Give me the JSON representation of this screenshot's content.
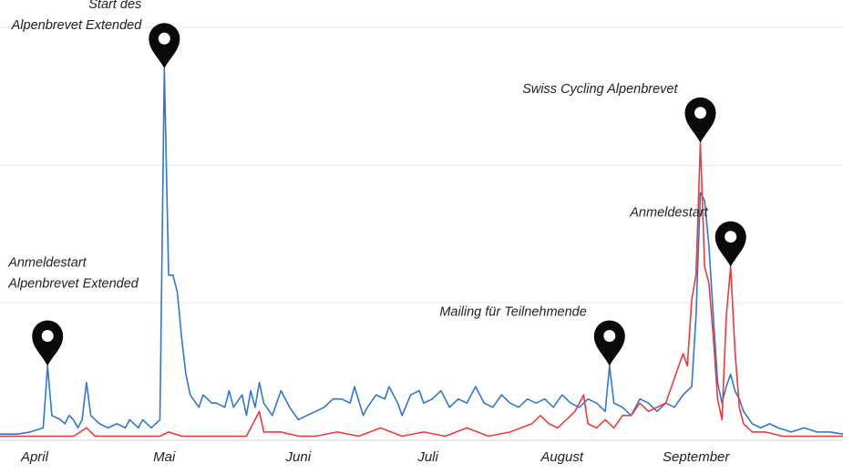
{
  "chart_data": {
    "type": "line",
    "title": "",
    "xlabel": "",
    "ylabel": "",
    "x_start": "2023-03-24",
    "x_end": "2023-10-05",
    "xlim": [
      "2023-03-24",
      "2023-10-05"
    ],
    "ylim": [
      0,
      100
    ],
    "grid": true,
    "legend": "none",
    "x_ticks": [
      {
        "label": "April",
        "date": "2023-04-01"
      },
      {
        "label": "Mai",
        "date": "2023-05-01"
      },
      {
        "label": "Juni",
        "date": "2023-06-01"
      },
      {
        "label": "Juli",
        "date": "2023-07-01"
      },
      {
        "label": "August",
        "date": "2023-08-01"
      },
      {
        "label": "September",
        "date": "2023-09-01"
      }
    ],
    "series": [
      {
        "color": "#2f77d4",
        "points": [
          [
            "2023-03-24",
            1.5
          ],
          [
            "2023-03-28",
            1.5
          ],
          [
            "2023-03-31",
            2
          ],
          [
            "2023-04-03",
            3
          ],
          [
            "2023-04-04",
            18
          ],
          [
            "2023-04-05",
            6
          ],
          [
            "2023-04-07",
            5
          ],
          [
            "2023-04-08",
            4
          ],
          [
            "2023-04-09",
            6
          ],
          [
            "2023-04-10",
            5
          ],
          [
            "2023-04-11",
            3
          ],
          [
            "2023-04-12",
            5
          ],
          [
            "2023-04-13",
            14
          ],
          [
            "2023-04-14",
            6
          ],
          [
            "2023-04-16",
            4
          ],
          [
            "2023-04-18",
            3
          ],
          [
            "2023-04-20",
            4
          ],
          [
            "2023-04-22",
            3
          ],
          [
            "2023-04-23",
            5
          ],
          [
            "2023-04-25",
            3
          ],
          [
            "2023-04-26",
            5
          ],
          [
            "2023-04-28",
            3
          ],
          [
            "2023-04-29",
            4
          ],
          [
            "2023-04-30",
            5
          ],
          [
            "2023-05-01",
            90
          ],
          [
            "2023-05-02",
            40
          ],
          [
            "2023-05-03",
            40
          ],
          [
            "2023-05-04",
            36
          ],
          [
            "2023-05-05",
            25
          ],
          [
            "2023-05-06",
            16
          ],
          [
            "2023-05-07",
            11
          ],
          [
            "2023-05-09",
            8
          ],
          [
            "2023-05-10",
            11
          ],
          [
            "2023-05-12",
            9
          ],
          [
            "2023-05-13",
            9
          ],
          [
            "2023-05-15",
            8
          ],
          [
            "2023-05-16",
            12
          ],
          [
            "2023-05-17",
            8
          ],
          [
            "2023-05-19",
            11
          ],
          [
            "2023-05-20",
            6
          ],
          [
            "2023-05-21",
            12
          ],
          [
            "2023-05-22",
            8
          ],
          [
            "2023-05-23",
            14
          ],
          [
            "2023-05-24",
            9
          ],
          [
            "2023-05-26",
            6
          ],
          [
            "2023-05-28",
            12
          ],
          [
            "2023-05-30",
            8
          ],
          [
            "2023-06-01",
            5
          ],
          [
            "2023-06-03",
            6
          ],
          [
            "2023-06-05",
            7
          ],
          [
            "2023-06-07",
            8
          ],
          [
            "2023-06-09",
            10
          ],
          [
            "2023-06-11",
            10
          ],
          [
            "2023-06-13",
            9
          ],
          [
            "2023-06-14",
            13
          ],
          [
            "2023-06-16",
            6
          ],
          [
            "2023-06-17",
            8
          ],
          [
            "2023-06-19",
            11
          ],
          [
            "2023-06-21",
            10
          ],
          [
            "2023-06-22",
            13
          ],
          [
            "2023-06-24",
            9
          ],
          [
            "2023-06-25",
            6
          ],
          [
            "2023-06-27",
            11
          ],
          [
            "2023-06-29",
            12
          ],
          [
            "2023-06-30",
            9
          ],
          [
            "2023-07-02",
            10
          ],
          [
            "2023-07-04",
            12
          ],
          [
            "2023-07-06",
            8
          ],
          [
            "2023-07-08",
            10
          ],
          [
            "2023-07-10",
            9
          ],
          [
            "2023-07-12",
            13
          ],
          [
            "2023-07-14",
            9
          ],
          [
            "2023-07-16",
            8
          ],
          [
            "2023-07-18",
            11
          ],
          [
            "2023-07-20",
            9
          ],
          [
            "2023-07-22",
            8
          ],
          [
            "2023-07-24",
            10
          ],
          [
            "2023-07-26",
            9
          ],
          [
            "2023-07-28",
            10
          ],
          [
            "2023-07-30",
            8
          ],
          [
            "2023-08-01",
            11
          ],
          [
            "2023-08-03",
            9
          ],
          [
            "2023-08-05",
            8
          ],
          [
            "2023-08-07",
            10
          ],
          [
            "2023-08-09",
            9
          ],
          [
            "2023-08-11",
            7
          ],
          [
            "2023-08-12",
            18
          ],
          [
            "2023-08-13",
            9
          ],
          [
            "2023-08-15",
            8
          ],
          [
            "2023-08-17",
            6
          ],
          [
            "2023-08-19",
            10
          ],
          [
            "2023-08-21",
            9
          ],
          [
            "2023-08-23",
            7
          ],
          [
            "2023-08-25",
            9
          ],
          [
            "2023-08-27",
            8
          ],
          [
            "2023-08-29",
            11
          ],
          [
            "2023-08-31",
            13
          ],
          [
            "2023-09-01",
            30
          ],
          [
            "2023-09-02",
            60
          ],
          [
            "2023-09-03",
            58
          ],
          [
            "2023-09-04",
            47
          ],
          [
            "2023-09-05",
            30
          ],
          [
            "2023-09-06",
            14
          ],
          [
            "2023-09-07",
            9
          ],
          [
            "2023-09-08",
            13
          ],
          [
            "2023-09-09",
            16
          ],
          [
            "2023-09-10",
            12
          ],
          [
            "2023-09-11",
            10
          ],
          [
            "2023-09-12",
            7
          ],
          [
            "2023-09-14",
            4
          ],
          [
            "2023-09-16",
            3
          ],
          [
            "2023-09-18",
            4
          ],
          [
            "2023-09-20",
            3
          ],
          [
            "2023-09-23",
            2
          ],
          [
            "2023-09-26",
            3
          ],
          [
            "2023-09-29",
            2
          ],
          [
            "2023-10-02",
            2
          ],
          [
            "2023-10-05",
            1.5
          ]
        ]
      },
      {
        "color": "#f03a3a",
        "points": [
          [
            "2023-03-24",
            1
          ],
          [
            "2023-03-30",
            1
          ],
          [
            "2023-04-05",
            1
          ],
          [
            "2023-04-10",
            1
          ],
          [
            "2023-04-13",
            3
          ],
          [
            "2023-04-15",
            1
          ],
          [
            "2023-04-20",
            1
          ],
          [
            "2023-04-25",
            1
          ],
          [
            "2023-04-30",
            1
          ],
          [
            "2023-05-02",
            2
          ],
          [
            "2023-05-05",
            1
          ],
          [
            "2023-05-10",
            1
          ],
          [
            "2023-05-15",
            1
          ],
          [
            "2023-05-20",
            1
          ],
          [
            "2023-05-23",
            7
          ],
          [
            "2023-05-24",
            2
          ],
          [
            "2023-05-28",
            2
          ],
          [
            "2023-06-01",
            1
          ],
          [
            "2023-06-05",
            1
          ],
          [
            "2023-06-10",
            2
          ],
          [
            "2023-06-15",
            1
          ],
          [
            "2023-06-20",
            3
          ],
          [
            "2023-06-25",
            1
          ],
          [
            "2023-06-30",
            2
          ],
          [
            "2023-07-05",
            1
          ],
          [
            "2023-07-10",
            3
          ],
          [
            "2023-07-15",
            1
          ],
          [
            "2023-07-20",
            2
          ],
          [
            "2023-07-25",
            4
          ],
          [
            "2023-07-27",
            6
          ],
          [
            "2023-07-29",
            4
          ],
          [
            "2023-07-31",
            3
          ],
          [
            "2023-08-02",
            5
          ],
          [
            "2023-08-04",
            7
          ],
          [
            "2023-08-06",
            11
          ],
          [
            "2023-08-07",
            4
          ],
          [
            "2023-08-09",
            3
          ],
          [
            "2023-08-11",
            5
          ],
          [
            "2023-08-13",
            3
          ],
          [
            "2023-08-15",
            6
          ],
          [
            "2023-08-17",
            6
          ],
          [
            "2023-08-19",
            9
          ],
          [
            "2023-08-21",
            7
          ],
          [
            "2023-08-23",
            8
          ],
          [
            "2023-08-25",
            9
          ],
          [
            "2023-08-27",
            15
          ],
          [
            "2023-08-29",
            21
          ],
          [
            "2023-08-30",
            18
          ],
          [
            "2023-08-31",
            34
          ],
          [
            "2023-09-01",
            40
          ],
          [
            "2023-09-02",
            72
          ],
          [
            "2023-09-03",
            42
          ],
          [
            "2023-09-04",
            38
          ],
          [
            "2023-09-05",
            25
          ],
          [
            "2023-09-06",
            10
          ],
          [
            "2023-09-07",
            5
          ],
          [
            "2023-09-08",
            30
          ],
          [
            "2023-09-09",
            42
          ],
          [
            "2023-09-10",
            22
          ],
          [
            "2023-09-11",
            8
          ],
          [
            "2023-09-12",
            4
          ],
          [
            "2023-09-14",
            2
          ],
          [
            "2023-09-17",
            2
          ],
          [
            "2023-09-21",
            1
          ],
          [
            "2023-09-25",
            1
          ],
          [
            "2023-09-30",
            1
          ],
          [
            "2023-10-05",
            1
          ]
        ]
      }
    ],
    "annotations": [
      {
        "text": [
          "Anmeldestart",
          "Alpenbrevet Extended"
        ],
        "date": "2023-04-04",
        "value": 18,
        "align": "left",
        "icon": "map-pin-icon"
      },
      {
        "text": [
          "Start des",
          "Alpenbrevet Extended"
        ],
        "date": "2023-05-01",
        "value": 90,
        "align": "right",
        "icon": "map-pin-icon"
      },
      {
        "text": [
          "Mailing für Teilnehmende"
        ],
        "date": "2023-08-12",
        "value": 18,
        "align": "right",
        "icon": "map-pin-icon"
      },
      {
        "text": [
          "Swiss Cycling Alpenbrevet"
        ],
        "date": "2023-09-02",
        "value": 72,
        "align": "right",
        "icon": "map-pin-icon"
      },
      {
        "text": [
          "Anmeldestart"
        ],
        "date": "2023-09-09",
        "value": 42,
        "align": "right",
        "icon": "map-pin-icon"
      }
    ]
  }
}
